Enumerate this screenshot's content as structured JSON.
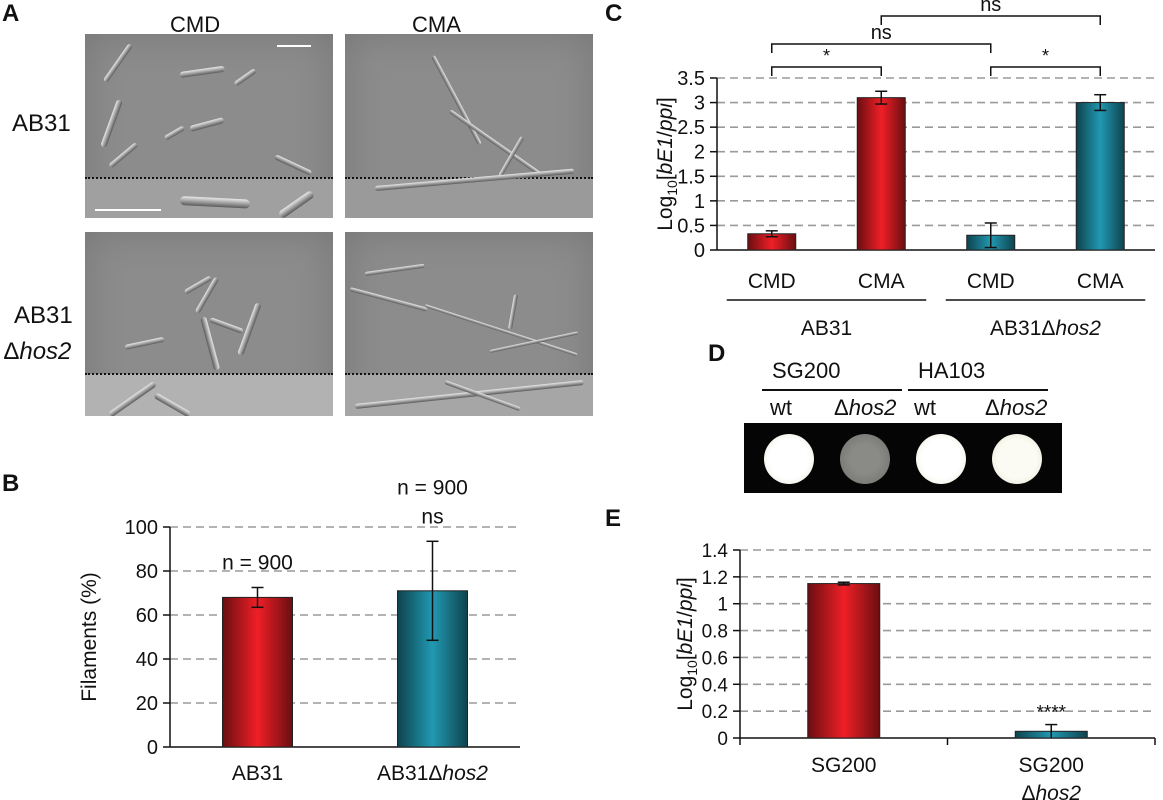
{
  "figure": {
    "letters": {
      "A": "A",
      "B": "B",
      "C": "C",
      "D": "D",
      "E": "E"
    }
  },
  "panelA": {
    "col_headers": [
      "CMD",
      "CMA"
    ],
    "row_labels": [
      {
        "line1": "AB31",
        "line2": ""
      },
      {
        "line1": "AB31",
        "line2_prefix": "Δ",
        "line2_italic": "hos2"
      }
    ],
    "background_color": "#8c8c8c"
  },
  "panelD": {
    "groups": [
      "SG200",
      "HA103"
    ],
    "subs": [
      {
        "prefix": "",
        "italic": "",
        "plain": "wt"
      },
      {
        "prefix": "Δ",
        "italic": "hos2",
        "plain": ""
      },
      {
        "prefix": "",
        "italic": "",
        "plain": "wt"
      },
      {
        "prefix": "Δ",
        "italic": "hos2",
        "plain": ""
      }
    ],
    "colony_appearance": [
      "white",
      "grey",
      "white",
      "white"
    ]
  },
  "chart_data": [
    {
      "panel": "B",
      "type": "bar",
      "categories": [
        "AB31",
        "AB31Δhos2"
      ],
      "category_parts": [
        {
          "plain": "AB31",
          "prefix": "",
          "italic": ""
        },
        {
          "plain": "AB31",
          "prefix": "Δ",
          "italic": "hos2"
        }
      ],
      "values": [
        68,
        71
      ],
      "errors": [
        4.5,
        22.5
      ],
      "colors": [
        "#c0191e",
        "#1a7a8e"
      ],
      "ylabel": "Filaments (%)",
      "ylim": [
        0,
        100
      ],
      "yticks": [
        0,
        20,
        40,
        60,
        80,
        100
      ],
      "grid": "dashed horizontal",
      "annotations": [
        {
          "bar": 0,
          "lines": [
            "n = 900"
          ]
        },
        {
          "bar": 1,
          "lines": [
            "n = 900",
            "ns"
          ]
        }
      ]
    },
    {
      "panel": "C",
      "type": "bar",
      "categories": [
        "CMD",
        "CMA",
        "CMD",
        "CMA"
      ],
      "groups": [
        {
          "plain": "AB31",
          "prefix": "",
          "italic": ""
        },
        {
          "plain": "AB31",
          "prefix": "Δ",
          "italic": "hos2"
        }
      ],
      "values": [
        0.33,
        3.1,
        0.3,
        3.0
      ],
      "errors": [
        0.06,
        0.13,
        0.25,
        0.16
      ],
      "colors": [
        "#c0191e",
        "#c0191e",
        "#1a7a8e",
        "#1a7a8e"
      ],
      "ylabel": {
        "pre": "Log",
        "sub": "10",
        "mid": "[",
        "italic": "bE1",
        "slash": "/",
        "italic2": "ppi",
        "post": "]"
      },
      "ylim": [
        0,
        3.5
      ],
      "yticks": [
        0,
        0.5,
        1,
        1.5,
        2,
        2.5,
        3,
        3.5
      ],
      "grid": "dashed horizontal",
      "significance": [
        {
          "from": 0,
          "to": 1,
          "label": "*",
          "level": 1
        },
        {
          "from": 2,
          "to": 3,
          "label": "*",
          "level": 1
        },
        {
          "from": 0,
          "to": 2,
          "label": "ns",
          "level": 2
        },
        {
          "from": 1,
          "to": 3,
          "label": "ns",
          "level": 3
        }
      ]
    },
    {
      "panel": "E",
      "type": "bar",
      "categories": [
        "SG200",
        "SG200 Δhos2"
      ],
      "category_parts": [
        {
          "line1": "SG200",
          "prefix": "",
          "italic": ""
        },
        {
          "line1": "SG200",
          "prefix": "Δ",
          "italic": "hos2"
        }
      ],
      "values": [
        1.15,
        0.05
      ],
      "errors": [
        0.01,
        0.05
      ],
      "colors": [
        "#c0191e",
        "#1a7a8e"
      ],
      "ylabel": {
        "pre": "Log",
        "sub": "10",
        "mid": "[",
        "italic": "bE1",
        "slash": "/",
        "italic2": "ppi",
        "post": "]"
      },
      "ylim": [
        0,
        1.4
      ],
      "yticks": [
        0,
        0.2,
        0.4,
        0.6,
        0.8,
        1,
        1.2,
        1.4
      ],
      "grid": "dashed horizontal",
      "annotations": [
        {
          "bar": 1,
          "lines": [
            "****"
          ]
        }
      ]
    }
  ]
}
